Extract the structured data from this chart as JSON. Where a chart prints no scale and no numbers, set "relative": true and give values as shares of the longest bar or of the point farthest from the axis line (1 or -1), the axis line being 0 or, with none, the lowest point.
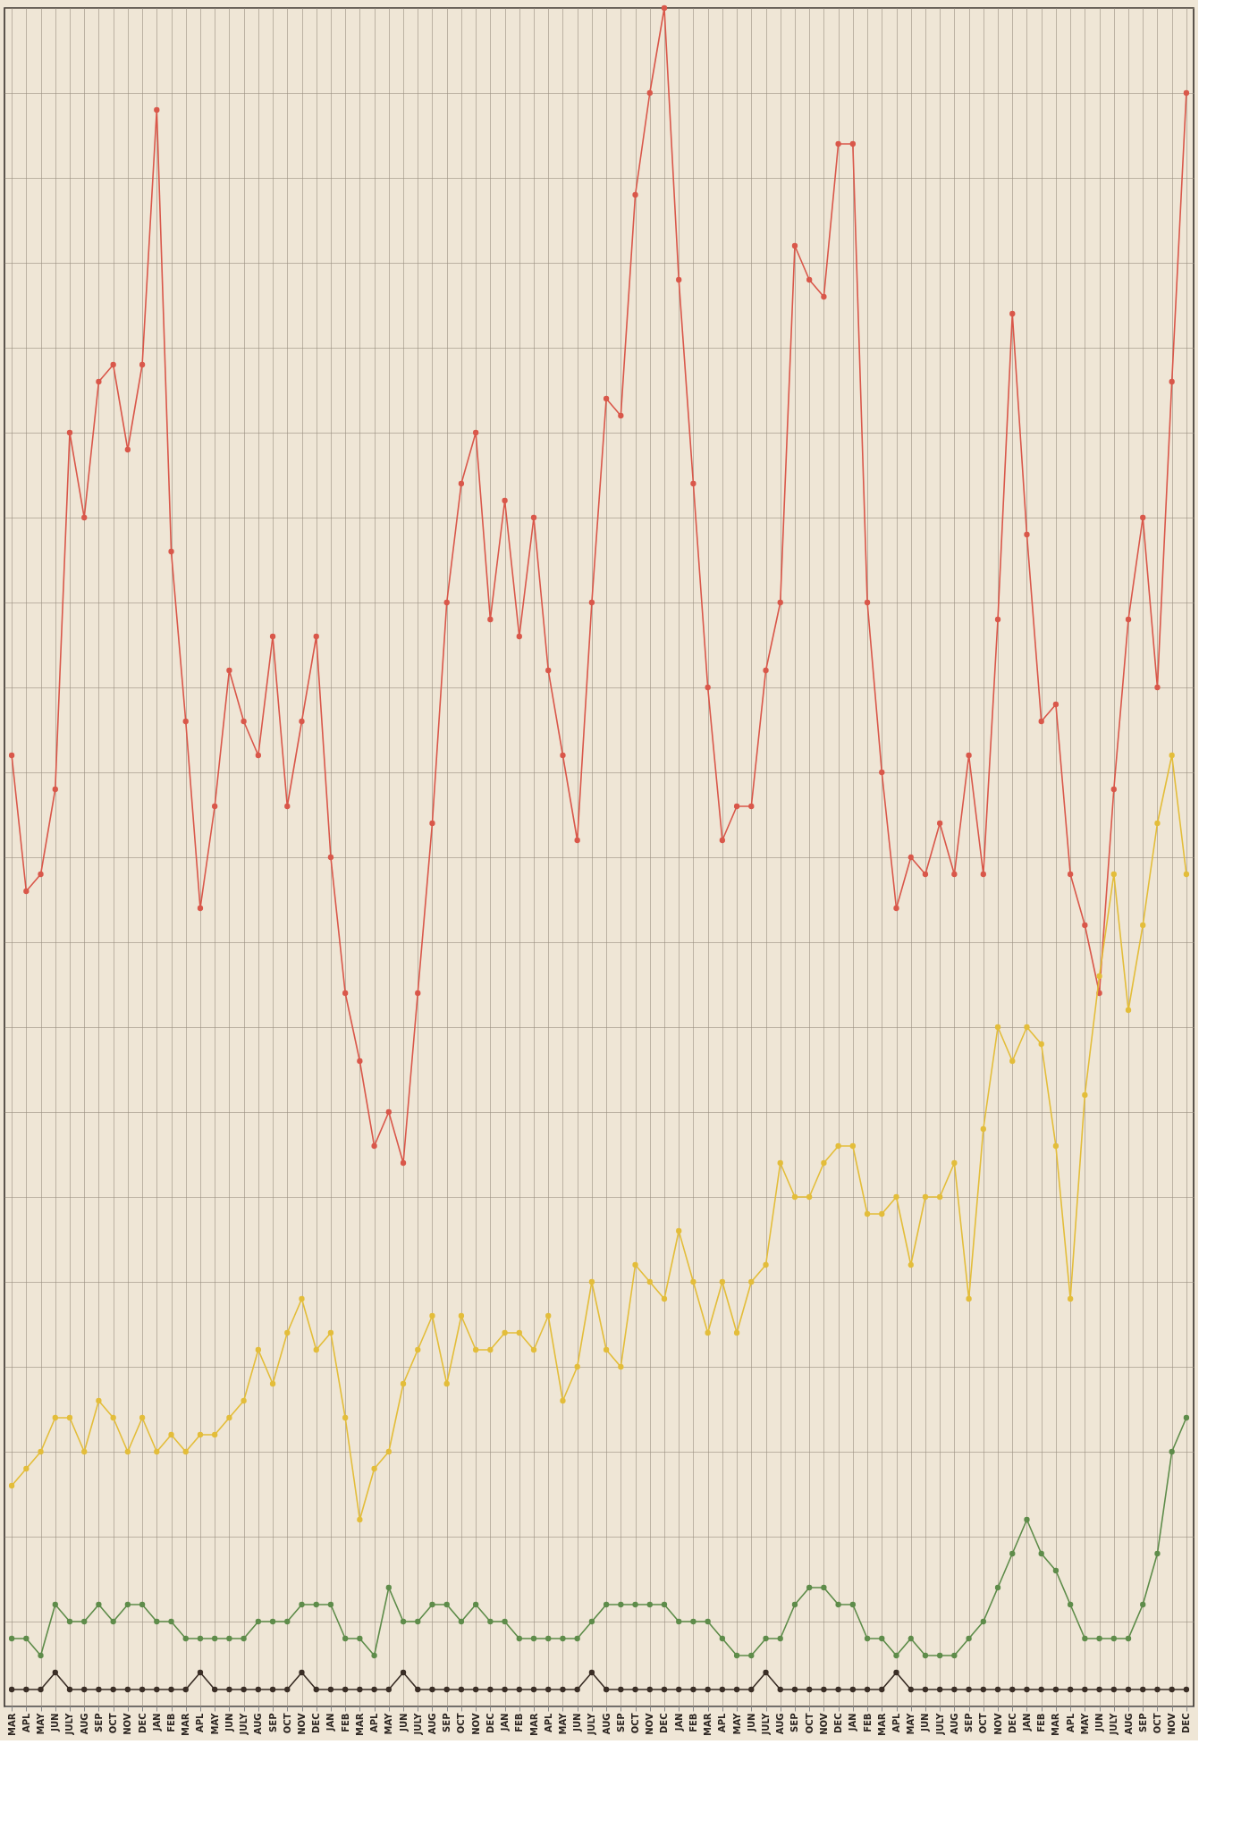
{
  "chart_data": {
    "type": "line",
    "relative": true,
    "grid": true,
    "marker": "circle",
    "line_style": "solid",
    "categories": [
      "MAR",
      "APL",
      "MAY",
      "JUN",
      "JULY",
      "AUG",
      "SEP",
      "OCT",
      "NOV",
      "DEC",
      "JAN",
      "FEB",
      "MAR",
      "APL",
      "MAY",
      "JUN",
      "JULY",
      "AUG",
      "SEP",
      "OCT",
      "NOV",
      "DEC",
      "JAN",
      "FEB",
      "MAR",
      "APL",
      "MAY",
      "JUN",
      "JULY",
      "AUG",
      "SEP",
      "OCT",
      "NOV",
      "DEC",
      "JAN",
      "FEB",
      "MAR",
      "APL",
      "MAY",
      "JUN",
      "JULY",
      "AUG",
      "SEP",
      "OCT",
      "NOV",
      "DEC",
      "JAN",
      "FEB",
      "MAR",
      "APL",
      "MAY",
      "JUN",
      "JULY",
      "AUG",
      "SEP",
      "OCT",
      "NOV",
      "DEC",
      "JAN",
      "FEB",
      "MAR",
      "APL",
      "MAY",
      "JUN",
      "JULY",
      "AUG",
      "SEP",
      "OCT",
      "NOV",
      "DEC",
      "JAN",
      "FEB",
      "MAR",
      "APL",
      "MAY",
      "JUN",
      "JULY",
      "AUG",
      "SEP",
      "OCT",
      "NOV",
      "DEC"
    ],
    "series": [
      {
        "color": "#d9574a",
        "values": [
          0.56,
          0.48,
          0.49,
          0.54,
          0.75,
          0.7,
          0.78,
          0.79,
          0.74,
          0.79,
          0.94,
          0.68,
          0.58,
          0.47,
          0.53,
          0.61,
          0.58,
          0.56,
          0.63,
          0.53,
          0.58,
          0.63,
          0.5,
          0.42,
          0.38,
          0.33,
          0.35,
          0.32,
          0.42,
          0.52,
          0.65,
          0.72,
          0.75,
          0.64,
          0.71,
          0.63,
          0.7,
          0.61,
          0.56,
          0.51,
          0.65,
          0.77,
          0.76,
          0.89,
          0.95,
          1.0,
          0.84,
          0.72,
          0.6,
          0.51,
          0.53,
          0.53,
          0.61,
          0.65,
          0.86,
          0.84,
          0.83,
          0.92,
          0.92,
          0.65,
          0.55,
          0.47,
          0.5,
          0.49,
          0.52,
          0.49,
          0.56,
          0.49,
          0.64,
          0.82,
          0.69,
          0.58,
          0.59,
          0.49,
          0.46,
          0.42,
          0.54,
          0.64,
          0.7,
          0.6,
          0.78,
          0.95
        ]
      },
      {
        "color": "#e3bd3a",
        "values": [
          0.13,
          0.14,
          0.15,
          0.17,
          0.17,
          0.15,
          0.18,
          0.17,
          0.15,
          0.17,
          0.15,
          0.16,
          0.15,
          0.16,
          0.16,
          0.17,
          0.18,
          0.21,
          0.19,
          0.22,
          0.24,
          0.21,
          0.22,
          0.17,
          0.11,
          0.14,
          0.15,
          0.19,
          0.21,
          0.23,
          0.19,
          0.23,
          0.21,
          0.21,
          0.22,
          0.22,
          0.21,
          0.23,
          0.18,
          0.2,
          0.25,
          0.21,
          0.2,
          0.26,
          0.25,
          0.24,
          0.28,
          0.25,
          0.22,
          0.25,
          0.22,
          0.25,
          0.26,
          0.32,
          0.3,
          0.3,
          0.32,
          0.33,
          0.33,
          0.29,
          0.29,
          0.3,
          0.26,
          0.3,
          0.3,
          0.32,
          0.24,
          0.34,
          0.4,
          0.38,
          0.4,
          0.39,
          0.33,
          0.24,
          0.36,
          0.43,
          0.49,
          0.41,
          0.46,
          0.52,
          0.56,
          0.49
        ]
      },
      {
        "color": "#5e8c4a",
        "values": [
          0.04,
          0.04,
          0.03,
          0.06,
          0.05,
          0.05,
          0.06,
          0.05,
          0.06,
          0.06,
          0.05,
          0.05,
          0.04,
          0.04,
          0.04,
          0.04,
          0.04,
          0.05,
          0.05,
          0.05,
          0.06,
          0.06,
          0.06,
          0.04,
          0.04,
          0.03,
          0.07,
          0.05,
          0.05,
          0.06,
          0.06,
          0.05,
          0.06,
          0.05,
          0.05,
          0.04,
          0.04,
          0.04,
          0.04,
          0.04,
          0.05,
          0.06,
          0.06,
          0.06,
          0.06,
          0.06,
          0.05,
          0.05,
          0.05,
          0.04,
          0.03,
          0.03,
          0.04,
          0.04,
          0.06,
          0.07,
          0.07,
          0.06,
          0.06,
          0.04,
          0.04,
          0.03,
          0.04,
          0.03,
          0.03,
          0.03,
          0.04,
          0.05,
          0.07,
          0.09,
          0.11,
          0.09,
          0.08,
          0.06,
          0.04,
          0.04,
          0.04,
          0.04,
          0.06,
          0.09,
          0.15,
          0.17
        ]
      },
      {
        "color": "#3a2e26",
        "values": [
          0.01,
          0.01,
          0.01,
          0.02,
          0.01,
          0.01,
          0.01,
          0.01,
          0.01,
          0.01,
          0.01,
          0.01,
          0.01,
          0.02,
          0.01,
          0.01,
          0.01,
          0.01,
          0.01,
          0.01,
          0.02,
          0.01,
          0.01,
          0.01,
          0.01,
          0.01,
          0.01,
          0.02,
          0.01,
          0.01,
          0.01,
          0.01,
          0.01,
          0.01,
          0.01,
          0.01,
          0.01,
          0.01,
          0.01,
          0.01,
          0.02,
          0.01,
          0.01,
          0.01,
          0.01,
          0.01,
          0.01,
          0.01,
          0.01,
          0.01,
          0.01,
          0.01,
          0.02,
          0.01,
          0.01,
          0.01,
          0.01,
          0.01,
          0.01,
          0.01,
          0.01,
          0.02,
          0.01,
          0.01,
          0.01,
          0.01,
          0.01,
          0.01,
          0.01,
          0.01,
          0.01,
          0.01,
          0.01,
          0.01,
          0.01,
          0.01,
          0.01,
          0.01,
          0.01,
          0.01,
          0.01,
          0.01
        ]
      }
    ]
  }
}
